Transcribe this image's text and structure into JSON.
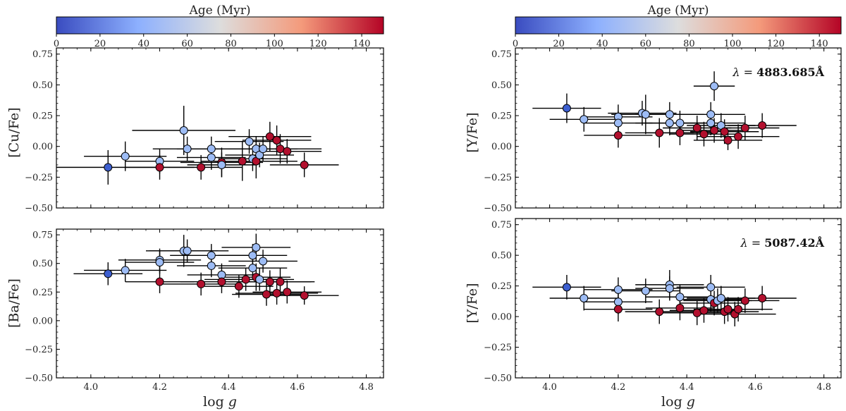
{
  "colorbar": {
    "title": "Age (Myr)",
    "ticks": [
      "0",
      "20",
      "40",
      "60",
      "80",
      "100",
      "120",
      "140"
    ],
    "stops": [
      "#3a4cc0",
      "#8db0fe",
      "#dddddd",
      "#f49a7b",
      "#b40426"
    ]
  },
  "colors": {
    "young": "#3d5fd0",
    "mid": "#9dbcf5",
    "old": "#b2102e"
  },
  "chart_data": [
    {
      "id": "cu",
      "type": "scatter",
      "ylabel": "[Cu/Fe]",
      "xlabel": "",
      "xlim": [
        3.9,
        4.85
      ],
      "ylim": [
        -0.5,
        0.8
      ],
      "xticks": [
        "4.0",
        "4.2",
        "4.4",
        "4.6",
        "4.8"
      ],
      "yticks": [
        "−0.50",
        "−0.25",
        "0.00",
        "0.25",
        "0.50",
        "0.75"
      ],
      "show_xtick_labels": false,
      "annotation": null,
      "points": [
        {
          "x": 4.05,
          "y": -0.17,
          "ex": 0.15,
          "ey": 0.14,
          "age": "young"
        },
        {
          "x": 4.1,
          "y": -0.08,
          "ex": 0.12,
          "ey": 0.12,
          "age": "mid"
        },
        {
          "x": 4.2,
          "y": -0.12,
          "ex": 0.1,
          "ey": 0.1,
          "age": "mid"
        },
        {
          "x": 4.2,
          "y": -0.17,
          "ex": 0.1,
          "ey": 0.1,
          "age": "old"
        },
        {
          "x": 4.27,
          "y": 0.13,
          "ex": 0.15,
          "ey": 0.2,
          "age": "mid"
        },
        {
          "x": 4.28,
          "y": -0.02,
          "ex": 0.1,
          "ey": 0.1,
          "age": "mid"
        },
        {
          "x": 4.32,
          "y": -0.17,
          "ex": 0.12,
          "ey": 0.1,
          "age": "old"
        },
        {
          "x": 4.35,
          "y": -0.02,
          "ex": 0.1,
          "ey": 0.1,
          "age": "mid"
        },
        {
          "x": 4.35,
          "y": -0.09,
          "ex": 0.1,
          "ey": 0.1,
          "age": "mid"
        },
        {
          "x": 4.38,
          "y": -0.13,
          "ex": 0.12,
          "ey": 0.12,
          "age": "old"
        },
        {
          "x": 4.38,
          "y": -0.15,
          "ex": 0.1,
          "ey": 0.1,
          "age": "mid"
        },
        {
          "x": 4.44,
          "y": -0.12,
          "ex": 0.12,
          "ey": 0.16,
          "age": "old"
        },
        {
          "x": 4.46,
          "y": 0.04,
          "ex": 0.1,
          "ey": 0.1,
          "age": "mid"
        },
        {
          "x": 4.47,
          "y": -0.1,
          "ex": 0.1,
          "ey": 0.1,
          "age": "mid"
        },
        {
          "x": 4.48,
          "y": -0.02,
          "ex": 0.1,
          "ey": 0.1,
          "age": "mid"
        },
        {
          "x": 4.48,
          "y": -0.12,
          "ex": 0.12,
          "ey": 0.14,
          "age": "old"
        },
        {
          "x": 4.49,
          "y": -0.07,
          "ex": 0.1,
          "ey": 0.1,
          "age": "mid"
        },
        {
          "x": 4.5,
          "y": -0.02,
          "ex": 0.1,
          "ey": 0.1,
          "age": "mid"
        },
        {
          "x": 4.52,
          "y": 0.08,
          "ex": 0.12,
          "ey": 0.12,
          "age": "old"
        },
        {
          "x": 4.54,
          "y": 0.05,
          "ex": 0.1,
          "ey": 0.12,
          "age": "old"
        },
        {
          "x": 4.55,
          "y": -0.02,
          "ex": 0.12,
          "ey": 0.12,
          "age": "old"
        },
        {
          "x": 4.57,
          "y": -0.04,
          "ex": 0.1,
          "ey": 0.1,
          "age": "old"
        },
        {
          "x": 4.62,
          "y": -0.15,
          "ex": 0.1,
          "ey": 0.1,
          "age": "old"
        }
      ]
    },
    {
      "id": "ba",
      "type": "scatter",
      "ylabel": "[Ba/Fe]",
      "xlabel": "log g",
      "xlim": [
        3.9,
        4.85
      ],
      "ylim": [
        -0.5,
        0.8
      ],
      "xticks": [
        "4.0",
        "4.2",
        "4.4",
        "4.6",
        "4.8"
      ],
      "yticks": [
        "−0.50",
        "−0.25",
        "0.00",
        "0.25",
        "0.50",
        "0.75"
      ],
      "show_xtick_labels": true,
      "annotation": null,
      "points": [
        {
          "x": 4.05,
          "y": 0.41,
          "ex": 0.1,
          "ey": 0.1,
          "age": "young"
        },
        {
          "x": 4.1,
          "y": 0.44,
          "ex": 0.12,
          "ey": 0.1,
          "age": "mid"
        },
        {
          "x": 4.2,
          "y": 0.53,
          "ex": 0.12,
          "ey": 0.1,
          "age": "mid"
        },
        {
          "x": 4.2,
          "y": 0.51,
          "ex": 0.1,
          "ey": 0.1,
          "age": "mid"
        },
        {
          "x": 4.2,
          "y": 0.34,
          "ex": 0.1,
          "ey": 0.1,
          "age": "old"
        },
        {
          "x": 4.27,
          "y": 0.61,
          "ex": 0.1,
          "ey": 0.14,
          "age": "mid"
        },
        {
          "x": 4.28,
          "y": 0.61,
          "ex": 0.12,
          "ey": 0.1,
          "age": "mid"
        },
        {
          "x": 4.32,
          "y": 0.32,
          "ex": 0.12,
          "ey": 0.1,
          "age": "old"
        },
        {
          "x": 4.35,
          "y": 0.57,
          "ex": 0.12,
          "ey": 0.1,
          "age": "mid"
        },
        {
          "x": 4.35,
          "y": 0.48,
          "ex": 0.1,
          "ey": 0.1,
          "age": "mid"
        },
        {
          "x": 4.38,
          "y": 0.4,
          "ex": 0.1,
          "ey": 0.1,
          "age": "mid"
        },
        {
          "x": 4.38,
          "y": 0.34,
          "ex": 0.12,
          "ey": 0.1,
          "age": "old"
        },
        {
          "x": 4.43,
          "y": 0.3,
          "ex": 0.1,
          "ey": 0.1,
          "age": "old"
        },
        {
          "x": 4.45,
          "y": 0.36,
          "ex": 0.12,
          "ey": 0.1,
          "age": "old"
        },
        {
          "x": 4.47,
          "y": 0.57,
          "ex": 0.1,
          "ey": 0.1,
          "age": "mid"
        },
        {
          "x": 4.47,
          "y": 0.46,
          "ex": 0.1,
          "ey": 0.1,
          "age": "mid"
        },
        {
          "x": 4.48,
          "y": 0.64,
          "ex": 0.1,
          "ey": 0.12,
          "age": "mid"
        },
        {
          "x": 4.48,
          "y": 0.38,
          "ex": 0.1,
          "ey": 0.12,
          "age": "old"
        },
        {
          "x": 4.49,
          "y": 0.36,
          "ex": 0.1,
          "ey": 0.1,
          "age": "mid"
        },
        {
          "x": 4.5,
          "y": 0.52,
          "ex": 0.1,
          "ey": 0.1,
          "age": "mid"
        },
        {
          "x": 4.51,
          "y": 0.23,
          "ex": 0.1,
          "ey": 0.1,
          "age": "old"
        },
        {
          "x": 4.52,
          "y": 0.34,
          "ex": 0.12,
          "ey": 0.1,
          "age": "old"
        },
        {
          "x": 4.54,
          "y": 0.24,
          "ex": 0.12,
          "ey": 0.1,
          "age": "old"
        },
        {
          "x": 4.55,
          "y": 0.34,
          "ex": 0.1,
          "ey": 0.12,
          "age": "old"
        },
        {
          "x": 4.57,
          "y": 0.25,
          "ex": 0.1,
          "ey": 0.1,
          "age": "old"
        },
        {
          "x": 4.62,
          "y": 0.22,
          "ex": 0.1,
          "ey": 0.08,
          "age": "old"
        }
      ]
    },
    {
      "id": "y1",
      "type": "scatter",
      "ylabel": "[Y/Fe]",
      "xlabel": "",
      "xlim": [
        3.9,
        4.85
      ],
      "ylim": [
        -0.5,
        0.8
      ],
      "xticks": [
        "4.0",
        "4.2",
        "4.4",
        "4.6",
        "4.8"
      ],
      "yticks": [
        "−0.50",
        "−0.25",
        "0.00",
        "0.25",
        "0.50",
        "0.75"
      ],
      "show_xtick_labels": false,
      "annotation": {
        "prefix": "λ = ",
        "value": "4883.685Å"
      },
      "points": [
        {
          "x": 4.05,
          "y": 0.31,
          "ex": 0.1,
          "ey": 0.12,
          "age": "young"
        },
        {
          "x": 4.1,
          "y": 0.22,
          "ex": 0.1,
          "ey": 0.1,
          "age": "mid"
        },
        {
          "x": 4.2,
          "y": 0.24,
          "ex": 0.1,
          "ey": 0.1,
          "age": "mid"
        },
        {
          "x": 4.2,
          "y": 0.19,
          "ex": 0.1,
          "ey": 0.1,
          "age": "mid"
        },
        {
          "x": 4.2,
          "y": 0.09,
          "ex": 0.1,
          "ey": 0.1,
          "age": "old"
        },
        {
          "x": 4.27,
          "y": 0.27,
          "ex": 0.1,
          "ey": 0.1,
          "age": "mid"
        },
        {
          "x": 4.28,
          "y": 0.26,
          "ex": 0.1,
          "ey": 0.16,
          "age": "mid"
        },
        {
          "x": 4.32,
          "y": 0.11,
          "ex": 0.1,
          "ey": 0.12,
          "age": "old"
        },
        {
          "x": 4.35,
          "y": 0.26,
          "ex": 0.1,
          "ey": 0.1,
          "age": "mid"
        },
        {
          "x": 4.35,
          "y": 0.19,
          "ex": 0.1,
          "ey": 0.1,
          "age": "mid"
        },
        {
          "x": 4.38,
          "y": 0.19,
          "ex": 0.1,
          "ey": 0.1,
          "age": "mid"
        },
        {
          "x": 4.38,
          "y": 0.11,
          "ex": 0.1,
          "ey": 0.1,
          "age": "old"
        },
        {
          "x": 4.43,
          "y": 0.15,
          "ex": 0.1,
          "ey": 0.1,
          "age": "old"
        },
        {
          "x": 4.45,
          "y": 0.1,
          "ex": 0.1,
          "ey": 0.1,
          "age": "old"
        },
        {
          "x": 4.47,
          "y": 0.26,
          "ex": 0.1,
          "ey": 0.1,
          "age": "mid"
        },
        {
          "x": 4.47,
          "y": 0.19,
          "ex": 0.1,
          "ey": 0.1,
          "age": "mid"
        },
        {
          "x": 4.48,
          "y": 0.49,
          "ex": 0.06,
          "ey": 0.12,
          "age": "mid"
        },
        {
          "x": 4.48,
          "y": 0.13,
          "ex": 0.1,
          "ey": 0.1,
          "age": "old"
        },
        {
          "x": 4.5,
          "y": 0.17,
          "ex": 0.1,
          "ey": 0.1,
          "age": "mid"
        },
        {
          "x": 4.51,
          "y": 0.12,
          "ex": 0.1,
          "ey": 0.1,
          "age": "old"
        },
        {
          "x": 4.52,
          "y": 0.05,
          "ex": 0.1,
          "ey": 0.08,
          "age": "old"
        },
        {
          "x": 4.55,
          "y": 0.08,
          "ex": 0.12,
          "ey": 0.1,
          "age": "old"
        },
        {
          "x": 4.57,
          "y": 0.15,
          "ex": 0.1,
          "ey": 0.1,
          "age": "old"
        },
        {
          "x": 4.62,
          "y": 0.17,
          "ex": 0.1,
          "ey": 0.1,
          "age": "old"
        }
      ]
    },
    {
      "id": "y2",
      "type": "scatter",
      "ylabel": "[Y/Fe]",
      "xlabel": "log g",
      "xlim": [
        3.9,
        4.85
      ],
      "ylim": [
        -0.5,
        0.8
      ],
      "xticks": [
        "4.0",
        "4.2",
        "4.4",
        "4.6",
        "4.8"
      ],
      "yticks": [
        "−0.50",
        "−0.25",
        "0.00",
        "0.25",
        "0.50",
        "0.75"
      ],
      "show_xtick_labels": true,
      "annotation": {
        "prefix": "λ = ",
        "value": "5087.42Å"
      },
      "points": [
        {
          "x": 4.05,
          "y": 0.24,
          "ex": 0.1,
          "ey": 0.1,
          "age": "young"
        },
        {
          "x": 4.1,
          "y": 0.15,
          "ex": 0.1,
          "ey": 0.1,
          "age": "mid"
        },
        {
          "x": 4.2,
          "y": 0.22,
          "ex": 0.1,
          "ey": 0.1,
          "age": "mid"
        },
        {
          "x": 4.2,
          "y": 0.12,
          "ex": 0.1,
          "ey": 0.1,
          "age": "mid"
        },
        {
          "x": 4.2,
          "y": 0.06,
          "ex": 0.1,
          "ey": 0.1,
          "age": "old"
        },
        {
          "x": 4.28,
          "y": 0.21,
          "ex": 0.1,
          "ey": 0.1,
          "age": "mid"
        },
        {
          "x": 4.32,
          "y": 0.04,
          "ex": 0.1,
          "ey": 0.1,
          "age": "old"
        },
        {
          "x": 4.35,
          "y": 0.26,
          "ex": 0.1,
          "ey": 0.12,
          "age": "mid"
        },
        {
          "x": 4.35,
          "y": 0.23,
          "ex": 0.1,
          "ey": 0.1,
          "age": "mid"
        },
        {
          "x": 4.38,
          "y": 0.16,
          "ex": 0.1,
          "ey": 0.1,
          "age": "mid"
        },
        {
          "x": 4.38,
          "y": 0.07,
          "ex": 0.1,
          "ey": 0.1,
          "age": "old"
        },
        {
          "x": 4.43,
          "y": 0.03,
          "ex": 0.1,
          "ey": 0.1,
          "age": "old"
        },
        {
          "x": 4.45,
          "y": 0.05,
          "ex": 0.1,
          "ey": 0.1,
          "age": "old"
        },
        {
          "x": 4.47,
          "y": 0.24,
          "ex": 0.1,
          "ey": 0.1,
          "age": "mid"
        },
        {
          "x": 4.47,
          "y": 0.14,
          "ex": 0.1,
          "ey": 0.1,
          "age": "mid"
        },
        {
          "x": 4.48,
          "y": 0.11,
          "ex": 0.1,
          "ey": 0.1,
          "age": "old"
        },
        {
          "x": 4.49,
          "y": 0.13,
          "ex": 0.1,
          "ey": 0.1,
          "age": "mid"
        },
        {
          "x": 4.5,
          "y": 0.15,
          "ex": 0.1,
          "ey": 0.1,
          "age": "mid"
        },
        {
          "x": 4.51,
          "y": 0.04,
          "ex": 0.1,
          "ey": 0.1,
          "age": "old"
        },
        {
          "x": 4.52,
          "y": 0.06,
          "ex": 0.1,
          "ey": 0.1,
          "age": "old"
        },
        {
          "x": 4.54,
          "y": 0.02,
          "ex": 0.12,
          "ey": 0.1,
          "age": "old"
        },
        {
          "x": 4.55,
          "y": 0.06,
          "ex": 0.1,
          "ey": 0.1,
          "age": "old"
        },
        {
          "x": 4.57,
          "y": 0.13,
          "ex": 0.1,
          "ey": 0.1,
          "age": "old"
        },
        {
          "x": 4.62,
          "y": 0.15,
          "ex": 0.1,
          "ey": 0.1,
          "age": "old"
        }
      ]
    }
  ]
}
